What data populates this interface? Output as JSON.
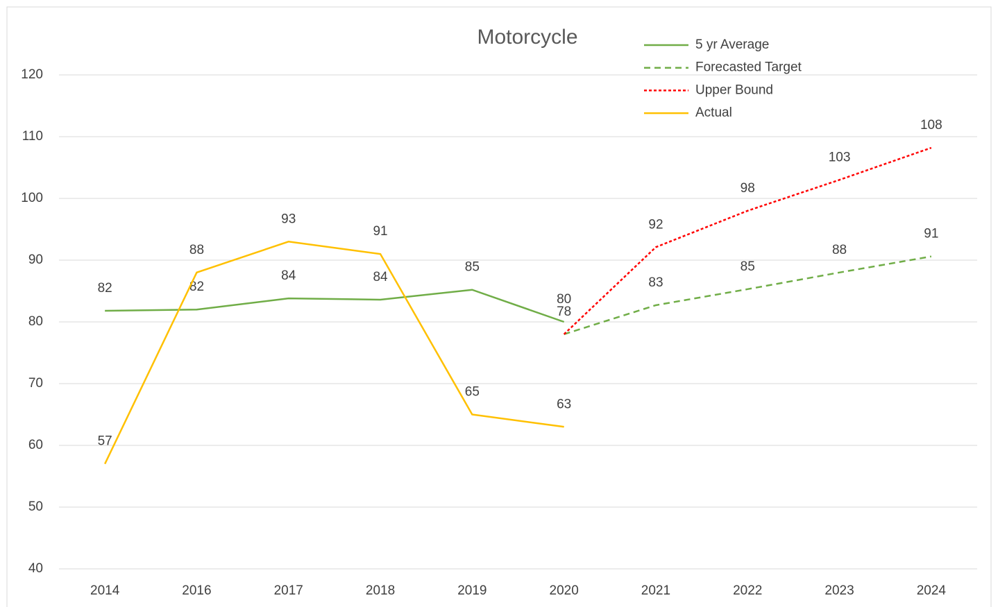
{
  "chart_data": {
    "type": "line",
    "title": "Motorcycle",
    "categories": [
      "2014",
      "2016",
      "2017",
      "2018",
      "2019",
      "2020",
      "2021",
      "2022",
      "2023",
      "2024"
    ],
    "series": [
      {
        "name": "5 yr Average",
        "color": "#70ad47",
        "dash": "solid",
        "values": [
          81.8,
          82,
          83.8,
          83.6,
          85.2,
          80,
          null,
          null,
          null,
          null
        ],
        "value_labels": [
          "82",
          "82",
          "84",
          "84",
          "85",
          "80",
          null,
          null,
          null,
          null
        ]
      },
      {
        "name": "Forecasted Target",
        "color": "#70ad47",
        "dash": "dashed",
        "values": [
          null,
          null,
          null,
          null,
          null,
          78,
          82.7,
          85.3,
          88,
          90.6
        ],
        "value_labels": [
          null,
          null,
          null,
          null,
          null,
          "78",
          "83",
          "85",
          "88",
          "91"
        ]
      },
      {
        "name": "Upper Bound",
        "color": "#ff0000",
        "dash": "dotted",
        "values": [
          null,
          null,
          null,
          null,
          null,
          78,
          92.1,
          98,
          103,
          108.2
        ],
        "value_labels": [
          null,
          null,
          null,
          null,
          null,
          null,
          "92",
          "98",
          "103",
          "108"
        ]
      },
      {
        "name": "Actual",
        "color": "#ffc000",
        "dash": "solid",
        "values": [
          57,
          88,
          93,
          91,
          65,
          63,
          null,
          null,
          null,
          null
        ]
      }
    ],
    "ylim": [
      40,
      120
    ],
    "yticks": [
      40,
      50,
      60,
      70,
      80,
      90,
      100,
      110,
      120
    ],
    "grid": true,
    "legend": "top-right"
  }
}
